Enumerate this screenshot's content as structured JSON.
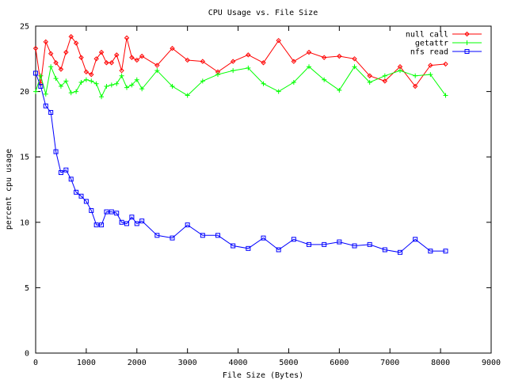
{
  "chart_data": {
    "type": "line",
    "title": "CPU Usage vs. File Size",
    "xlabel": "File Size (Bytes)",
    "ylabel": "percent cpu usage",
    "xlim": [
      0,
      9000
    ],
    "ylim": [
      0,
      25
    ],
    "xticks": [
      0,
      1000,
      2000,
      3000,
      4000,
      5000,
      6000,
      7000,
      8000,
      9000
    ],
    "yticks": [
      0,
      5,
      10,
      15,
      20,
      25
    ],
    "grid": false,
    "legend_position": "top-right",
    "series": [
      {
        "name": "null call",
        "color": "#ff0000",
        "marker": "diamond",
        "x": [
          0,
          100,
          200,
          300,
          400,
          500,
          600,
          700,
          800,
          900,
          1000,
          1100,
          1200,
          1300,
          1400,
          1500,
          1600,
          1700,
          1800,
          1900,
          2000,
          2100,
          2400,
          2700,
          3000,
          3300,
          3600,
          3900,
          4200,
          4500,
          4800,
          5100,
          5400,
          5700,
          6000,
          6300,
          6600,
          6900,
          7200,
          7500,
          7800,
          8100
        ],
        "y": [
          23.3,
          20.6,
          23.8,
          22.9,
          22.2,
          21.7,
          23.0,
          24.2,
          23.7,
          22.6,
          21.5,
          21.3,
          22.5,
          23.0,
          22.2,
          22.2,
          22.8,
          21.6,
          24.1,
          22.6,
          22.4,
          22.7,
          22.0,
          23.3,
          22.4,
          22.3,
          21.5,
          22.3,
          22.8,
          22.2,
          23.9,
          22.3,
          23.0,
          22.6,
          22.7,
          22.5,
          21.2,
          20.8,
          21.9,
          20.4,
          22.0,
          22.1
        ]
      },
      {
        "name": "getattr",
        "color": "#00ff00",
        "marker": "plus",
        "x": [
          0,
          100,
          200,
          300,
          400,
          500,
          600,
          700,
          800,
          900,
          1000,
          1100,
          1200,
          1300,
          1400,
          1500,
          1600,
          1700,
          1800,
          1900,
          2000,
          2100,
          2400,
          2700,
          3000,
          3300,
          3600,
          3900,
          4200,
          4500,
          4800,
          5100,
          5400,
          5700,
          6000,
          6300,
          6600,
          6900,
          7200,
          7500,
          7800,
          8100
        ],
        "y": [
          20.0,
          21.2,
          19.8,
          21.9,
          21.0,
          20.4,
          20.8,
          19.9,
          20.0,
          20.7,
          20.9,
          20.8,
          20.6,
          19.6,
          20.4,
          20.5,
          20.6,
          21.2,
          20.3,
          20.5,
          20.9,
          20.2,
          21.6,
          20.4,
          19.7,
          20.8,
          21.3,
          21.6,
          21.8,
          20.6,
          20.0,
          20.7,
          21.9,
          20.9,
          20.1,
          21.9,
          20.7,
          21.2,
          21.6,
          21.2,
          21.3,
          19.7
        ]
      },
      {
        "name": "nfs read",
        "color": "#0000ff",
        "marker": "square",
        "x": [
          0,
          100,
          200,
          300,
          400,
          500,
          600,
          700,
          800,
          900,
          1000,
          1100,
          1200,
          1300,
          1400,
          1500,
          1600,
          1700,
          1800,
          1900,
          2000,
          2100,
          2400,
          2700,
          3000,
          3300,
          3600,
          3900,
          4200,
          4500,
          4800,
          5100,
          5400,
          5700,
          6000,
          6300,
          6600,
          6900,
          7200,
          7500,
          7800,
          8100
        ],
        "y": [
          21.4,
          20.4,
          18.9,
          18.4,
          15.4,
          13.8,
          14.0,
          13.3,
          12.3,
          12.0,
          11.6,
          10.9,
          9.8,
          9.8,
          10.8,
          10.8,
          10.7,
          10.0,
          9.9,
          10.4,
          9.9,
          10.1,
          9.0,
          8.8,
          9.8,
          9.0,
          9.0,
          8.2,
          8.0,
          8.8,
          7.9,
          8.7,
          8.3,
          8.3,
          8.5,
          8.2,
          8.3,
          7.9,
          7.7,
          8.7,
          7.8,
          7.8
        ]
      }
    ]
  }
}
